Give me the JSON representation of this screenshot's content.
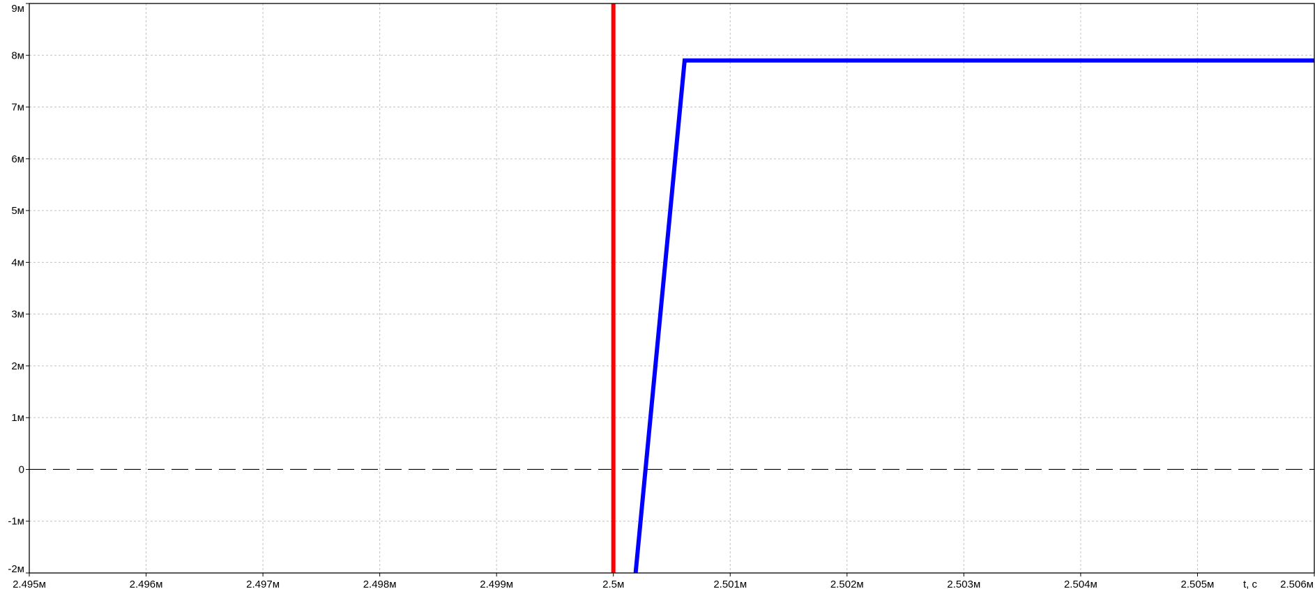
{
  "chart_data": {
    "type": "line",
    "title": "",
    "xlabel": "t, c",
    "ylabel": "",
    "xlim": [
      2.495,
      2.506
    ],
    "ylim": [
      -2,
      9
    ],
    "x_unit_note": "x values in milliseconds (2.495м = 2.495e-3 s)",
    "y_unit_note": "y values in milli-units (8м = 8e-3)",
    "x_ticks": [
      {
        "value": 2.495,
        "label": "2.495м"
      },
      {
        "value": 2.496,
        "label": "2.496м"
      },
      {
        "value": 2.497,
        "label": "2.497м"
      },
      {
        "value": 2.498,
        "label": "2.498м"
      },
      {
        "value": 2.499,
        "label": "2.499м"
      },
      {
        "value": 2.5,
        "label": "2.5м"
      },
      {
        "value": 2.501,
        "label": "2.501м"
      },
      {
        "value": 2.502,
        "label": "2.502м"
      },
      {
        "value": 2.503,
        "label": "2.503м"
      },
      {
        "value": 2.504,
        "label": "2.504м"
      },
      {
        "value": 2.505,
        "label": "2.505м"
      },
      {
        "value": 2.506,
        "label": "2.506м"
      }
    ],
    "y_ticks": [
      {
        "value": 9,
        "label": "9м"
      },
      {
        "value": 8,
        "label": "8м"
      },
      {
        "value": 7,
        "label": "7м"
      },
      {
        "value": 6,
        "label": "6м"
      },
      {
        "value": 5,
        "label": "5м"
      },
      {
        "value": 4,
        "label": "4м"
      },
      {
        "value": 3,
        "label": "3м"
      },
      {
        "value": 2,
        "label": "2м"
      },
      {
        "value": 1,
        "label": "1м"
      },
      {
        "value": 0,
        "label": "0"
      },
      {
        "value": -1,
        "label": "-1м"
      },
      {
        "value": -2,
        "label": "-2м"
      }
    ],
    "grid": true,
    "zero_line": true,
    "series": [
      {
        "color": "#ff0000",
        "points": [
          [
            2.5,
            -2
          ],
          [
            2.5,
            9
          ]
        ]
      },
      {
        "color": "#0000ff",
        "points": [
          [
            2.50019,
            -2
          ],
          [
            2.50061,
            7.9
          ],
          [
            2.506,
            7.9
          ]
        ]
      }
    ]
  }
}
